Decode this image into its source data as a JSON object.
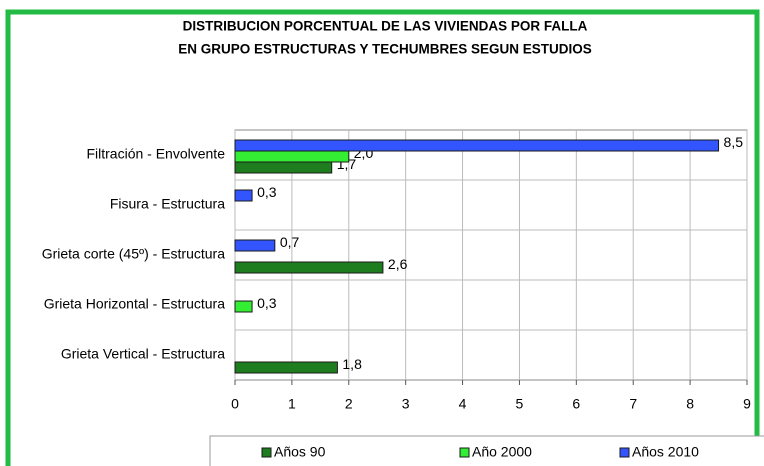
{
  "chart_data": {
    "type": "hbar",
    "title": [
      "DISTRIBUCION PORCENTUAL DE LAS VIVIENDAS POR FALLA",
      "EN GRUPO ESTRUCTURAS Y TECHUMBRES SEGUN ESTUDIOS"
    ],
    "categories": [
      "Filtración - Envolvente",
      "Fisura - Estructura",
      "Grieta corte (45º) - Estructura",
      "Grieta Horizontal - Estructura",
      "Grieta Vertical - Estructura"
    ],
    "series": [
      {
        "name": "Años 90",
        "color": "#1e7d1e",
        "values": [
          1.7,
          null,
          2.6,
          null,
          1.8
        ],
        "value_labels": [
          "1,7",
          null,
          "2,6",
          null,
          "1,8"
        ]
      },
      {
        "name": "Año 2000",
        "color": "#33ee33",
        "values": [
          2.0,
          null,
          null,
          0.3,
          null
        ],
        "value_labels": [
          "2,0",
          null,
          null,
          "0,3",
          null
        ]
      },
      {
        "name": "Años 2010",
        "color": "#3355ff",
        "values": [
          8.5,
          0.3,
          0.7,
          null,
          null
        ],
        "value_labels": [
          "8,5",
          "0,3",
          "0,7",
          null,
          null
        ]
      }
    ],
    "xlim": [
      0,
      9
    ],
    "xticks": [
      0,
      1,
      2,
      3,
      4,
      5,
      6,
      7,
      8,
      9
    ],
    "grid": true,
    "legend": "bottom"
  }
}
